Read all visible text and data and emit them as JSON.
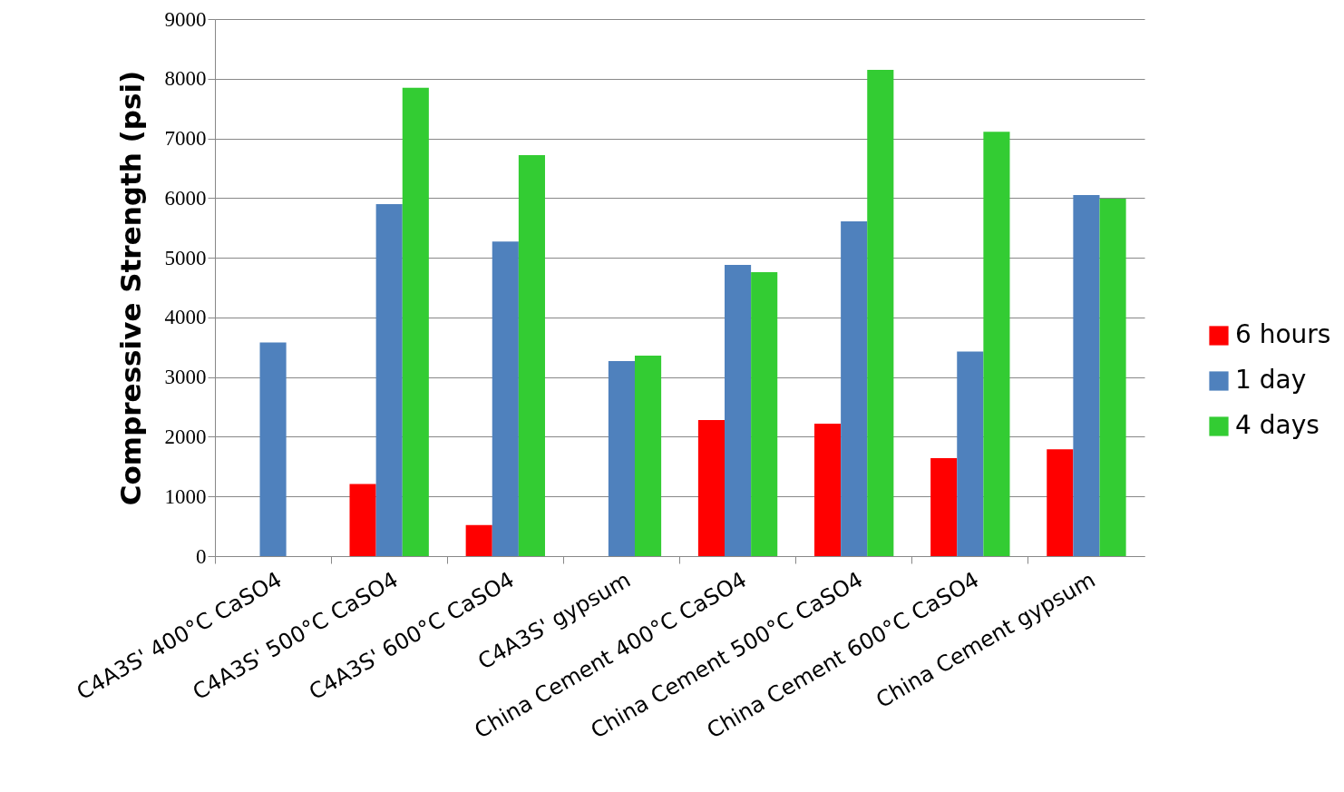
{
  "chart_data": {
    "type": "bar",
    "ylabel": "Compressive Strength (psi)",
    "categories": [
      "C4A3S' 400°C CaSO4",
      "C4A3S' 500°C CaSO4",
      "C4A3S' 600°C CaSO4",
      "C4A3S' gypsum",
      "China Cement 400°C CaSO4",
      "China Cement 500°C CaSO4",
      "China Cement 600°C CaSO4",
      "China Cement gypsum"
    ],
    "series": [
      {
        "name": "6 hours",
        "color": "#ff0000",
        "values": [
          null,
          1210,
          520,
          null,
          2280,
          2220,
          1640,
          1790
        ]
      },
      {
        "name": "1 day",
        "color": "#4f81bd",
        "values": [
          3580,
          5900,
          5270,
          3270,
          4880,
          5610,
          3430,
          6050
        ]
      },
      {
        "name": "4 days",
        "color": "#33cc33",
        "values": [
          null,
          7850,
          6720,
          3360,
          4760,
          8150,
          7110,
          5990
        ]
      }
    ],
    "ylim": [
      0,
      9000
    ],
    "yticks": [
      0,
      1000,
      2000,
      3000,
      4000,
      5000,
      6000,
      7000,
      8000,
      9000
    ],
    "grid": "y",
    "legend": "right"
  }
}
